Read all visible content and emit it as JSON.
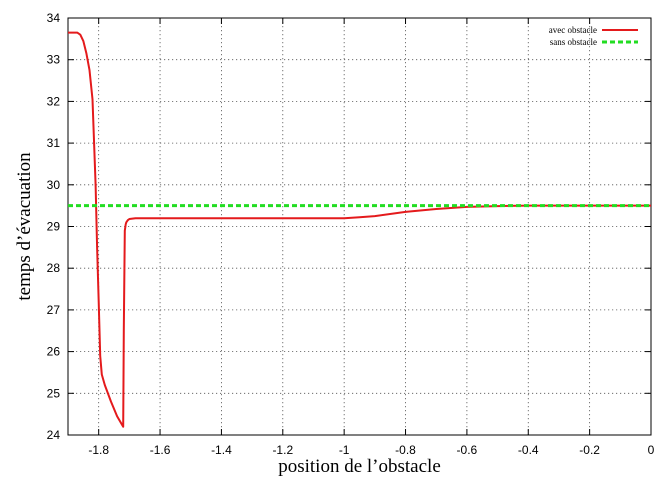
{
  "chart_data": {
    "type": "line",
    "title": "",
    "xlabel": "position de l’obstacle",
    "ylabel": "temps d’évacuation",
    "xlim": [
      -1.9,
      0
    ],
    "ylim": [
      24,
      34
    ],
    "x_ticks": [
      -1.8,
      -1.6,
      -1.4,
      -1.2,
      -1,
      -0.8,
      -0.6,
      -0.4,
      -0.2,
      0
    ],
    "x_tick_labels": [
      "-1.8",
      "-1.6",
      "-1.4",
      "-1.2",
      "-1",
      "-0.8",
      "-0.6",
      "-0.4",
      "-0.2",
      "0"
    ],
    "y_ticks": [
      24,
      25,
      26,
      27,
      28,
      29,
      30,
      31,
      32,
      33,
      34
    ],
    "y_tick_labels": [
      "24",
      "25",
      "26",
      "27",
      "28",
      "29",
      "30",
      "31",
      "32",
      "33",
      "34"
    ],
    "grid": true,
    "legend": "top-right",
    "series": [
      {
        "name": "avec obstacle",
        "color": "#e41a1c",
        "style": "solid",
        "x": [
          -1.9,
          -1.87,
          -1.86,
          -1.85,
          -1.84,
          -1.83,
          -1.82,
          -1.81,
          -1.805,
          -1.8,
          -1.795,
          -1.79,
          -1.78,
          -1.76,
          -1.74,
          -1.72,
          -1.718,
          -1.715,
          -1.712,
          -1.71,
          -1.705,
          -1.7,
          -1.69,
          -1.68,
          -1.6,
          -1.4,
          -1.2,
          -1.0,
          -0.95,
          -0.9,
          -0.8,
          -0.7,
          -0.6,
          -0.5,
          -0.4,
          -0.2,
          0
        ],
        "y": [
          33.65,
          33.65,
          33.6,
          33.45,
          33.15,
          32.75,
          32.05,
          30.0,
          28.5,
          27.2,
          25.9,
          25.45,
          25.2,
          24.8,
          24.45,
          24.2,
          26.5,
          28.9,
          29.05,
          29.1,
          29.15,
          29.18,
          29.19,
          29.2,
          29.2,
          29.2,
          29.2,
          29.2,
          29.22,
          29.25,
          29.35,
          29.42,
          29.47,
          29.49,
          29.5,
          29.5,
          29.5
        ]
      },
      {
        "name": "sans obstacle",
        "color": "#22dd22",
        "style": "dashed",
        "x": [
          -1.9,
          0
        ],
        "y": [
          29.5,
          29.5
        ]
      }
    ]
  }
}
